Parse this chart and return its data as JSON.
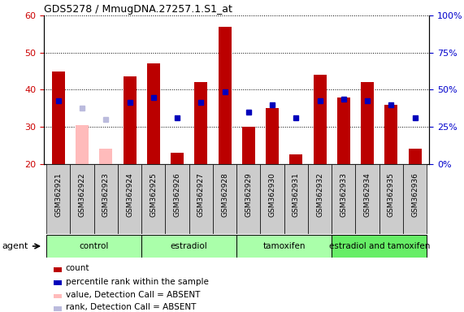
{
  "title": "GDS5278 / MmugDNA.27257.1.S1_at",
  "samples": [
    "GSM362921",
    "GSM362922",
    "GSM362923",
    "GSM362924",
    "GSM362925",
    "GSM362926",
    "GSM362927",
    "GSM362928",
    "GSM362929",
    "GSM362930",
    "GSM362931",
    "GSM362932",
    "GSM362933",
    "GSM362934",
    "GSM362935",
    "GSM362936"
  ],
  "count_values": [
    45.0,
    30.5,
    24.0,
    43.5,
    47.0,
    23.0,
    42.0,
    57.0,
    30.0,
    35.0,
    22.5,
    44.0,
    38.0,
    42.0,
    36.0,
    24.0
  ],
  "count_absent": [
    false,
    true,
    true,
    false,
    false,
    false,
    false,
    false,
    false,
    false,
    false,
    false,
    false,
    false,
    false,
    false
  ],
  "rank_values": [
    37.0,
    35.0,
    32.0,
    36.5,
    38.0,
    32.5,
    36.5,
    39.5,
    34.0,
    36.0,
    32.5,
    37.0,
    37.5,
    37.0,
    36.0,
    32.5
  ],
  "rank_absent": [
    false,
    true,
    true,
    false,
    false,
    false,
    false,
    false,
    false,
    false,
    false,
    false,
    false,
    false,
    false,
    false
  ],
  "ylim_left": [
    20,
    60
  ],
  "ylim_right": [
    0,
    100
  ],
  "yticks_left": [
    20,
    30,
    40,
    50,
    60
  ],
  "yticks_right": [
    0,
    25,
    50,
    75,
    100
  ],
  "bar_color_present": "#bb0000",
  "bar_color_absent": "#ffbbbb",
  "rank_color_present": "#0000bb",
  "rank_color_absent": "#bbbbdd",
  "group_boundaries": [
    [
      0,
      3,
      "control",
      "#aaffaa"
    ],
    [
      4,
      7,
      "estradiol",
      "#aaffaa"
    ],
    [
      8,
      11,
      "tamoxifen",
      "#aaffaa"
    ],
    [
      12,
      15,
      "estradiol and tamoxifen",
      "#66ee66"
    ]
  ],
  "legend_items": [
    {
      "label": "count",
      "color": "#bb0000"
    },
    {
      "label": "percentile rank within the sample",
      "color": "#0000bb"
    },
    {
      "label": "value, Detection Call = ABSENT",
      "color": "#ffbbbb"
    },
    {
      "label": "rank, Detection Call = ABSENT",
      "color": "#bbbbdd"
    }
  ],
  "bar_width": 0.55,
  "xticklabel_bg": "#cccccc",
  "tick_color_left": "#cc0000",
  "tick_color_right": "#0000cc"
}
